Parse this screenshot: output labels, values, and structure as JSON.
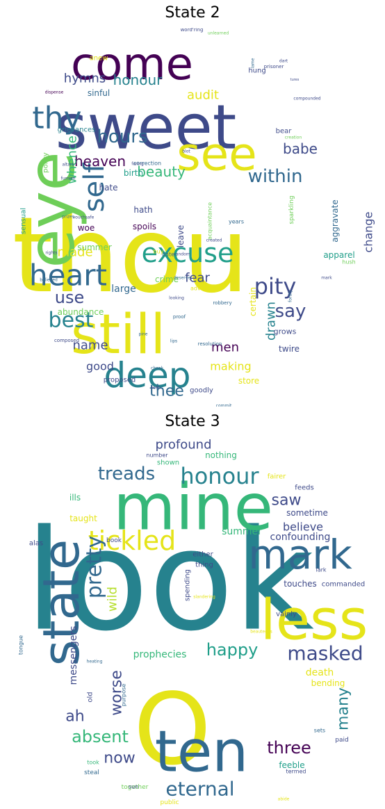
{
  "palette": {
    "purple": "#440154",
    "indigo": "#3e4a89",
    "blue": "#31688e",
    "teal": "#26828e",
    "sea": "#1f9e89",
    "green": "#35b779",
    "lime": "#6ece58",
    "yellowgreen": "#b5de2b",
    "yellow": "#e5e419"
  },
  "panels": [
    {
      "title": "State 2",
      "words": [
        {
          "text": "thou",
          "color": "yellow"
        },
        {
          "text": "sweet",
          "color": "indigo"
        },
        {
          "text": "still",
          "color": "yellow"
        },
        {
          "text": "eye",
          "color": "lime"
        },
        {
          "text": "come",
          "color": "purple"
        },
        {
          "text": "see",
          "color": "yellow"
        },
        {
          "text": "deep",
          "color": "teal"
        },
        {
          "text": "thy",
          "color": "blue"
        },
        {
          "text": "heart",
          "color": "blue"
        },
        {
          "text": "excuse",
          "color": "sea"
        },
        {
          "text": "self",
          "color": "blue"
        },
        {
          "text": "pity",
          "color": "indigo"
        },
        {
          "text": "within",
          "color": "blue"
        },
        {
          "text": "hours",
          "color": "blue"
        },
        {
          "text": "best",
          "color": "teal"
        },
        {
          "text": "say",
          "color": "indigo"
        },
        {
          "text": "use",
          "color": "indigo"
        },
        {
          "text": "honour",
          "color": "teal"
        },
        {
          "text": "hymns",
          "color": "indigo"
        },
        {
          "text": "audit",
          "color": "yellow"
        },
        {
          "text": "heaven",
          "color": "purple"
        },
        {
          "text": "whence",
          "color": "green"
        },
        {
          "text": "beauty",
          "color": "green"
        },
        {
          "text": "babe",
          "color": "indigo"
        },
        {
          "text": "change",
          "color": "indigo"
        },
        {
          "text": "drawn",
          "color": "teal"
        },
        {
          "text": "fear",
          "color": "indigo"
        },
        {
          "text": "made",
          "color": "yellow"
        },
        {
          "text": "thee",
          "color": "blue"
        },
        {
          "text": "name",
          "color": "indigo"
        },
        {
          "text": "men",
          "color": "purple"
        },
        {
          "text": "good",
          "color": "indigo"
        },
        {
          "text": "making",
          "color": "yellow"
        },
        {
          "text": "birth",
          "color": "sea"
        },
        {
          "text": "hate",
          "color": "indigo"
        },
        {
          "text": "hath",
          "color": "indigo"
        },
        {
          "text": "woe",
          "color": "purple"
        },
        {
          "text": "summer",
          "color": "lime"
        },
        {
          "text": "spoils",
          "color": "purple"
        },
        {
          "text": "leave",
          "color": "indigo"
        },
        {
          "text": "large",
          "color": "blue"
        },
        {
          "text": "crime",
          "color": "lime"
        },
        {
          "text": "certain",
          "color": "yellow"
        },
        {
          "text": "aggravate",
          "color": "blue"
        },
        {
          "text": "apparel",
          "color": "sea"
        },
        {
          "text": "abundance",
          "color": "lime"
        },
        {
          "text": "twire",
          "color": "indigo"
        },
        {
          "text": "grows",
          "color": "indigo"
        },
        {
          "text": "store",
          "color": "yellow"
        },
        {
          "text": "proposed",
          "color": "indigo"
        },
        {
          "text": "goodly",
          "color": "indigo"
        },
        {
          "text": "hung",
          "color": "indigo"
        },
        {
          "text": "anew",
          "color": "yellow"
        },
        {
          "text": "sinful",
          "color": "blue"
        },
        {
          "text": "bear",
          "color": "indigo"
        },
        {
          "text": "grievances",
          "color": "teal"
        },
        {
          "text": "policy",
          "color": "lime"
        },
        {
          "text": "sensual",
          "color": "sea"
        },
        {
          "text": "correction",
          "color": "blue"
        },
        {
          "text": "acquaintance",
          "color": "lime"
        },
        {
          "text": "sparkling",
          "color": "lime"
        },
        {
          "text": "years",
          "color": "blue"
        },
        {
          "text": "buy",
          "color": "yellow"
        },
        {
          "text": "date",
          "color": "blue"
        },
        {
          "text": "adverse",
          "color": "yellow"
        },
        {
          "text": "looking",
          "color": "indigo"
        },
        {
          "text": "robbery",
          "color": "blue"
        },
        {
          "text": "proof",
          "color": "blue"
        },
        {
          "text": "resolution",
          "color": "blue"
        },
        {
          "text": "composed",
          "color": "indigo"
        },
        {
          "text": "vouchsafe",
          "color": "indigo"
        },
        {
          "text": "prizes",
          "color": "blue"
        },
        {
          "text": "rights",
          "color": "indigo"
        },
        {
          "text": "dispense",
          "color": "purple"
        },
        {
          "text": "compounded",
          "color": "indigo"
        },
        {
          "text": "creation",
          "color": "lime"
        },
        {
          "text": "prisoner",
          "color": "indigo"
        },
        {
          "text": "dart",
          "color": "indigo"
        },
        {
          "text": "word'ring",
          "color": "indigo"
        },
        {
          "text": "unlearned",
          "color": "lime"
        },
        {
          "text": "hush",
          "color": "lime"
        },
        {
          "text": "mark",
          "color": "indigo"
        },
        {
          "text": "created",
          "color": "indigo"
        },
        {
          "text": "deserve",
          "color": "blue"
        },
        {
          "text": "believed",
          "color": "blue"
        },
        {
          "text": "faring",
          "color": "indigo"
        },
        {
          "text": "altars",
          "color": "indigo"
        },
        {
          "text": "random",
          "color": "indigo"
        },
        {
          "text": "lips",
          "color": "blue"
        },
        {
          "text": "pine",
          "color": "blue"
        },
        {
          "text": "cheek",
          "color": "blue"
        },
        {
          "text": "seen",
          "color": "indigo"
        },
        {
          "text": "commit",
          "color": "blue"
        },
        {
          "text": "furnish",
          "color": "indigo"
        },
        {
          "text": "fortify",
          "color": "blue"
        },
        {
          "text": "blot",
          "color": "indigo"
        },
        {
          "text": "lame",
          "color": "blue"
        },
        {
          "text": "tures",
          "color": "indigo"
        }
      ]
    },
    {
      "title": "State 3",
      "words": [
        {
          "text": "O",
          "color": "yellow"
        },
        {
          "text": "look",
          "color": "teal"
        },
        {
          "text": "mine",
          "color": "green"
        },
        {
          "text": "less",
          "color": "yellow"
        },
        {
          "text": "state",
          "color": "blue"
        },
        {
          "text": "ten",
          "color": "blue"
        },
        {
          "text": "mark",
          "color": "blue"
        },
        {
          "text": "tickled",
          "color": "yellow"
        },
        {
          "text": "masked",
          "color": "indigo"
        },
        {
          "text": "honour",
          "color": "teal"
        },
        {
          "text": "treads",
          "color": "blue"
        },
        {
          "text": "happy",
          "color": "sea"
        },
        {
          "text": "pretty",
          "color": "blue"
        },
        {
          "text": "eternal",
          "color": "blue"
        },
        {
          "text": "three",
          "color": "purple"
        },
        {
          "text": "absent",
          "color": "green"
        },
        {
          "text": "now",
          "color": "indigo"
        },
        {
          "text": "many",
          "color": "teal"
        },
        {
          "text": "worse",
          "color": "indigo"
        },
        {
          "text": "wild",
          "color": "yellowgreen"
        },
        {
          "text": "ah",
          "color": "indigo"
        },
        {
          "text": "saw",
          "color": "indigo"
        },
        {
          "text": "profound",
          "color": "indigo"
        },
        {
          "text": "believe",
          "color": "indigo"
        },
        {
          "text": "confounding",
          "color": "indigo"
        },
        {
          "text": "prophecies",
          "color": "green"
        },
        {
          "text": "death",
          "color": "yellow"
        },
        {
          "text": "bending",
          "color": "yellow"
        },
        {
          "text": "messengers",
          "color": "indigo"
        },
        {
          "text": "summer",
          "color": "green"
        },
        {
          "text": "taught",
          "color": "yellow"
        },
        {
          "text": "sometime",
          "color": "indigo"
        },
        {
          "text": "nothing",
          "color": "green"
        },
        {
          "text": "feeble",
          "color": "sea"
        },
        {
          "text": "touches",
          "color": "indigo"
        },
        {
          "text": "commanded",
          "color": "indigo"
        },
        {
          "text": "feeds",
          "color": "indigo"
        },
        {
          "text": "fairer",
          "color": "yellow"
        },
        {
          "text": "ills",
          "color": "green"
        },
        {
          "text": "alas",
          "color": "indigo"
        },
        {
          "text": "either",
          "color": "indigo"
        },
        {
          "text": "thing",
          "color": "indigo"
        },
        {
          "text": "book",
          "color": "indigo"
        },
        {
          "text": "old",
          "color": "indigo"
        },
        {
          "text": "took",
          "color": "green"
        },
        {
          "text": "steal",
          "color": "blue"
        },
        {
          "text": "paid",
          "color": "indigo"
        },
        {
          "text": "sets",
          "color": "blue"
        },
        {
          "text": "vainly",
          "color": "indigo"
        },
        {
          "text": "spending",
          "color": "indigo"
        },
        {
          "text": "termed",
          "color": "indigo"
        },
        {
          "text": "together",
          "color": "lime"
        },
        {
          "text": "sun",
          "color": "indigo"
        },
        {
          "text": "public",
          "color": "yellow"
        },
        {
          "text": "shown",
          "color": "green"
        },
        {
          "text": "number",
          "color": "indigo"
        },
        {
          "text": "lark",
          "color": "indigo"
        },
        {
          "text": "purpose",
          "color": "blue"
        },
        {
          "text": "tongue",
          "color": "blue"
        },
        {
          "text": "slandering",
          "color": "yellow"
        },
        {
          "text": "beauteous",
          "color": "yellow"
        },
        {
          "text": "heating",
          "color": "blue"
        },
        {
          "text": "abide",
          "color": "yellow"
        }
      ]
    }
  ]
}
